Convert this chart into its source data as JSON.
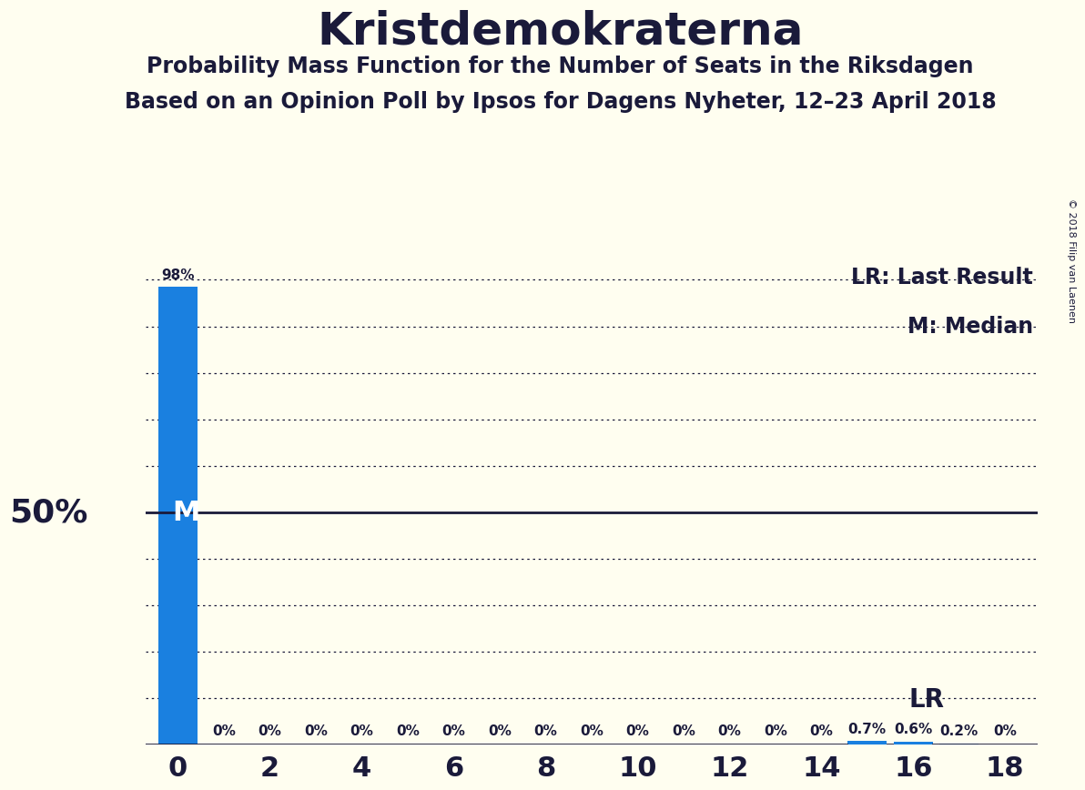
{
  "title": "Kristdemokraterna",
  "subtitle1": "Probability Mass Function for the Number of Seats in the Riksdagen",
  "subtitle2": "Based on an Opinion Poll by Ipsos for Dagens Nyheter, 12–23 April 2018",
  "copyright": "© 2018 Filip van Laenen",
  "background_color": "#fffef0",
  "bar_color": "#1a80e0",
  "lr_line_color": "#1a80e0",
  "median_line_color": "#1a1a3a",
  "text_color": "#1a1a3a",
  "seats": [
    0,
    1,
    2,
    3,
    4,
    5,
    6,
    7,
    8,
    9,
    10,
    11,
    12,
    13,
    14,
    15,
    16,
    17,
    18
  ],
  "probabilities": [
    98.5,
    0.0,
    0.0,
    0.0,
    0.0,
    0.0,
    0.0,
    0.0,
    0.0,
    0.0,
    0.0,
    0.0,
    0.0,
    0.0,
    0.0,
    0.7,
    0.6,
    0.2,
    0.0
  ],
  "bar_labels": [
    "98%",
    "0%",
    "0%",
    "0%",
    "0%",
    "0%",
    "0%",
    "0%",
    "0%",
    "0%",
    "0%",
    "0%",
    "0%",
    "0%",
    "0%",
    "0.7%",
    "0.6%",
    "0.2%",
    "0%"
  ],
  "median_value": 0,
  "lr_value": 16,
  "ylabel_50": "50%",
  "xtick_positions": [
    0,
    2,
    4,
    6,
    8,
    10,
    12,
    14,
    16,
    18
  ],
  "legend_lr": "LR: Last Result",
  "legend_m": "M: Median",
  "lr_label": "LR",
  "m_label": "M",
  "grid_color": "#1a1a3a",
  "dotted_yticks": [
    10,
    20,
    30,
    40,
    60,
    70,
    80,
    90,
    100
  ]
}
